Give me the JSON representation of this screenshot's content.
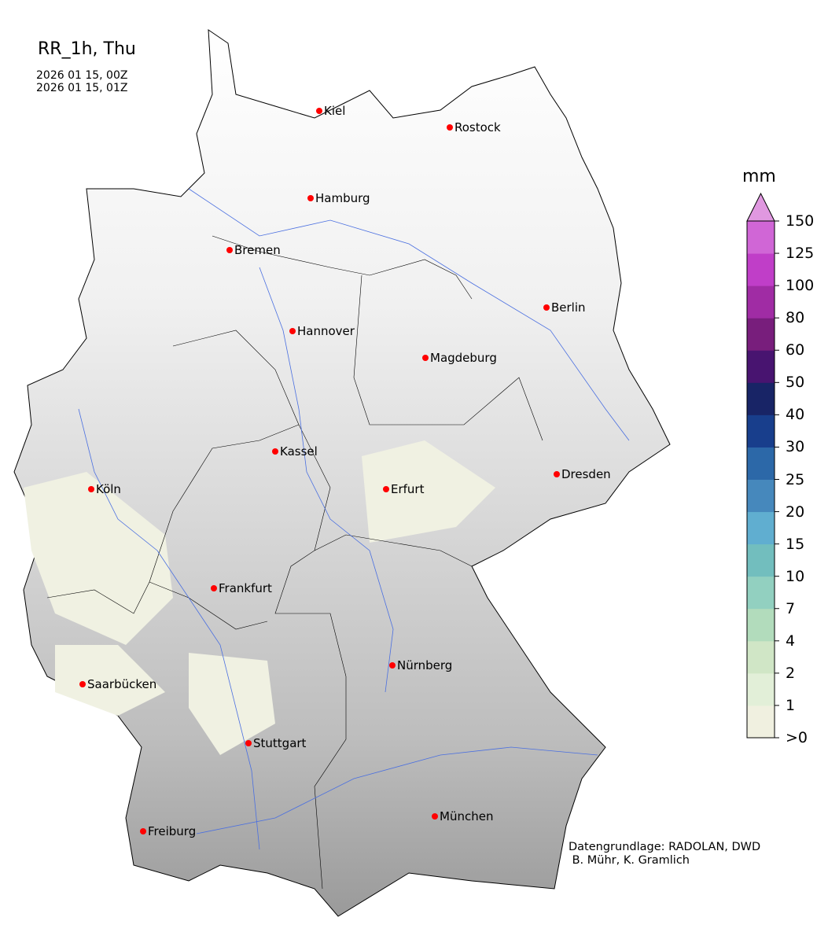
{
  "header": {
    "title": "RR_1h, Thu",
    "time_start": "2026 01 15, 00Z",
    "time_end": "2026 01 15, 01Z"
  },
  "credits": {
    "line1": "Datengrundlage: RADOLAN, DWD",
    "line2": " B. Mühr, K. Gramlich"
  },
  "cities": [
    {
      "name": "Kiel"
    },
    {
      "name": "Rostock"
    },
    {
      "name": "Hamburg"
    },
    {
      "name": "Bremen"
    },
    {
      "name": "Berlin"
    },
    {
      "name": "Hannover"
    },
    {
      "name": "Magdeburg"
    },
    {
      "name": "Kassel"
    },
    {
      "name": "Dresden"
    },
    {
      "name": "Köln"
    },
    {
      "name": "Erfurt"
    },
    {
      "name": "Frankfurt"
    },
    {
      "name": "Nürnberg"
    },
    {
      "name": "Saarbücken"
    },
    {
      "name": "Stuttgart"
    },
    {
      "name": "München"
    },
    {
      "name": "Freiburg"
    }
  ],
  "city_marker_color": "#ff0000",
  "colorbar": {
    "unit": "mm",
    "ticks": [
      ">0",
      "1",
      "2",
      "4",
      "7",
      "10",
      "15",
      "20",
      "25",
      "30",
      "40",
      "50",
      "60",
      "80",
      "100",
      "125",
      "150"
    ],
    "colors": [
      "#f0f0e0",
      "#e2efd8",
      "#d0e6c6",
      "#b2dcbc",
      "#92d0c0",
      "#72bebe",
      "#60aed0",
      "#4688bc",
      "#2c68a8",
      "#183e8c",
      "#182466",
      "#481470",
      "#781e7c",
      "#a02ca4",
      "#c03ec8",
      "#d066d6"
    ],
    "extend_color": "#e098e0"
  }
}
